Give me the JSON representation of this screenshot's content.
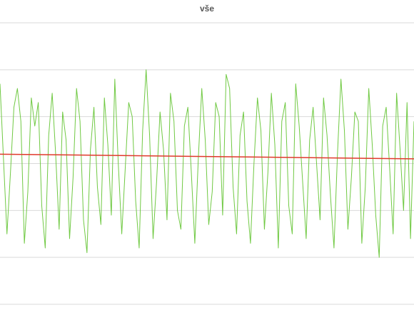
{
  "chart_data": {
    "type": "line",
    "title": "vše",
    "xlim": [
      0,
      119
    ],
    "ylim": [
      0,
      6
    ],
    "yticks": [
      0,
      1,
      2,
      3,
      4,
      5,
      6
    ],
    "grid": true,
    "series": [
      {
        "color": "#70c943",
        "values": [
          4.7,
          3.1,
          1.5,
          2.8,
          4.2,
          4.6,
          3.9,
          1.3,
          2.4,
          4.4,
          3.8,
          4.3,
          2.1,
          1.2,
          3.6,
          4.5,
          3.2,
          1.6,
          4.1,
          3.5,
          1.4,
          2.7,
          4.6,
          3.9,
          1.8,
          1.1,
          3.3,
          4.2,
          2.5,
          1.7,
          4.4,
          3.4,
          1.9,
          4.8,
          3.0,
          1.5,
          2.9,
          4.3,
          4.0,
          2.2,
          1.2,
          3.7,
          5.0,
          3.6,
          1.4,
          2.6,
          4.1,
          3.3,
          1.8,
          4.5,
          3.9,
          2.0,
          1.6,
          3.8,
          4.2,
          2.8,
          1.3,
          3.1,
          4.6,
          3.5,
          1.7,
          2.4,
          4.3,
          4.0,
          1.9,
          4.9,
          4.6,
          2.5,
          1.5,
          3.6,
          4.1,
          2.2,
          1.3,
          3.0,
          4.4,
          3.7,
          1.6,
          2.8,
          4.5,
          3.4,
          1.2,
          3.9,
          4.3,
          2.1,
          1.5,
          4.7,
          3.8,
          2.6,
          1.4,
          3.5,
          4.2,
          3.0,
          1.8,
          4.4,
          3.6,
          2.3,
          1.2,
          3.2,
          4.8,
          3.7,
          1.6,
          2.7,
          4.1,
          3.9,
          1.3,
          2.5,
          4.6,
          3.4,
          1.9,
          1.0,
          3.8,
          4.2,
          2.9,
          1.5,
          4.5,
          3.3,
          2.0,
          4.3,
          1.4,
          3.9
        ]
      },
      {
        "color": "#e0392b",
        "x": [
          0,
          119
        ],
        "values": [
          3.2,
          3.1
        ]
      }
    ]
  }
}
